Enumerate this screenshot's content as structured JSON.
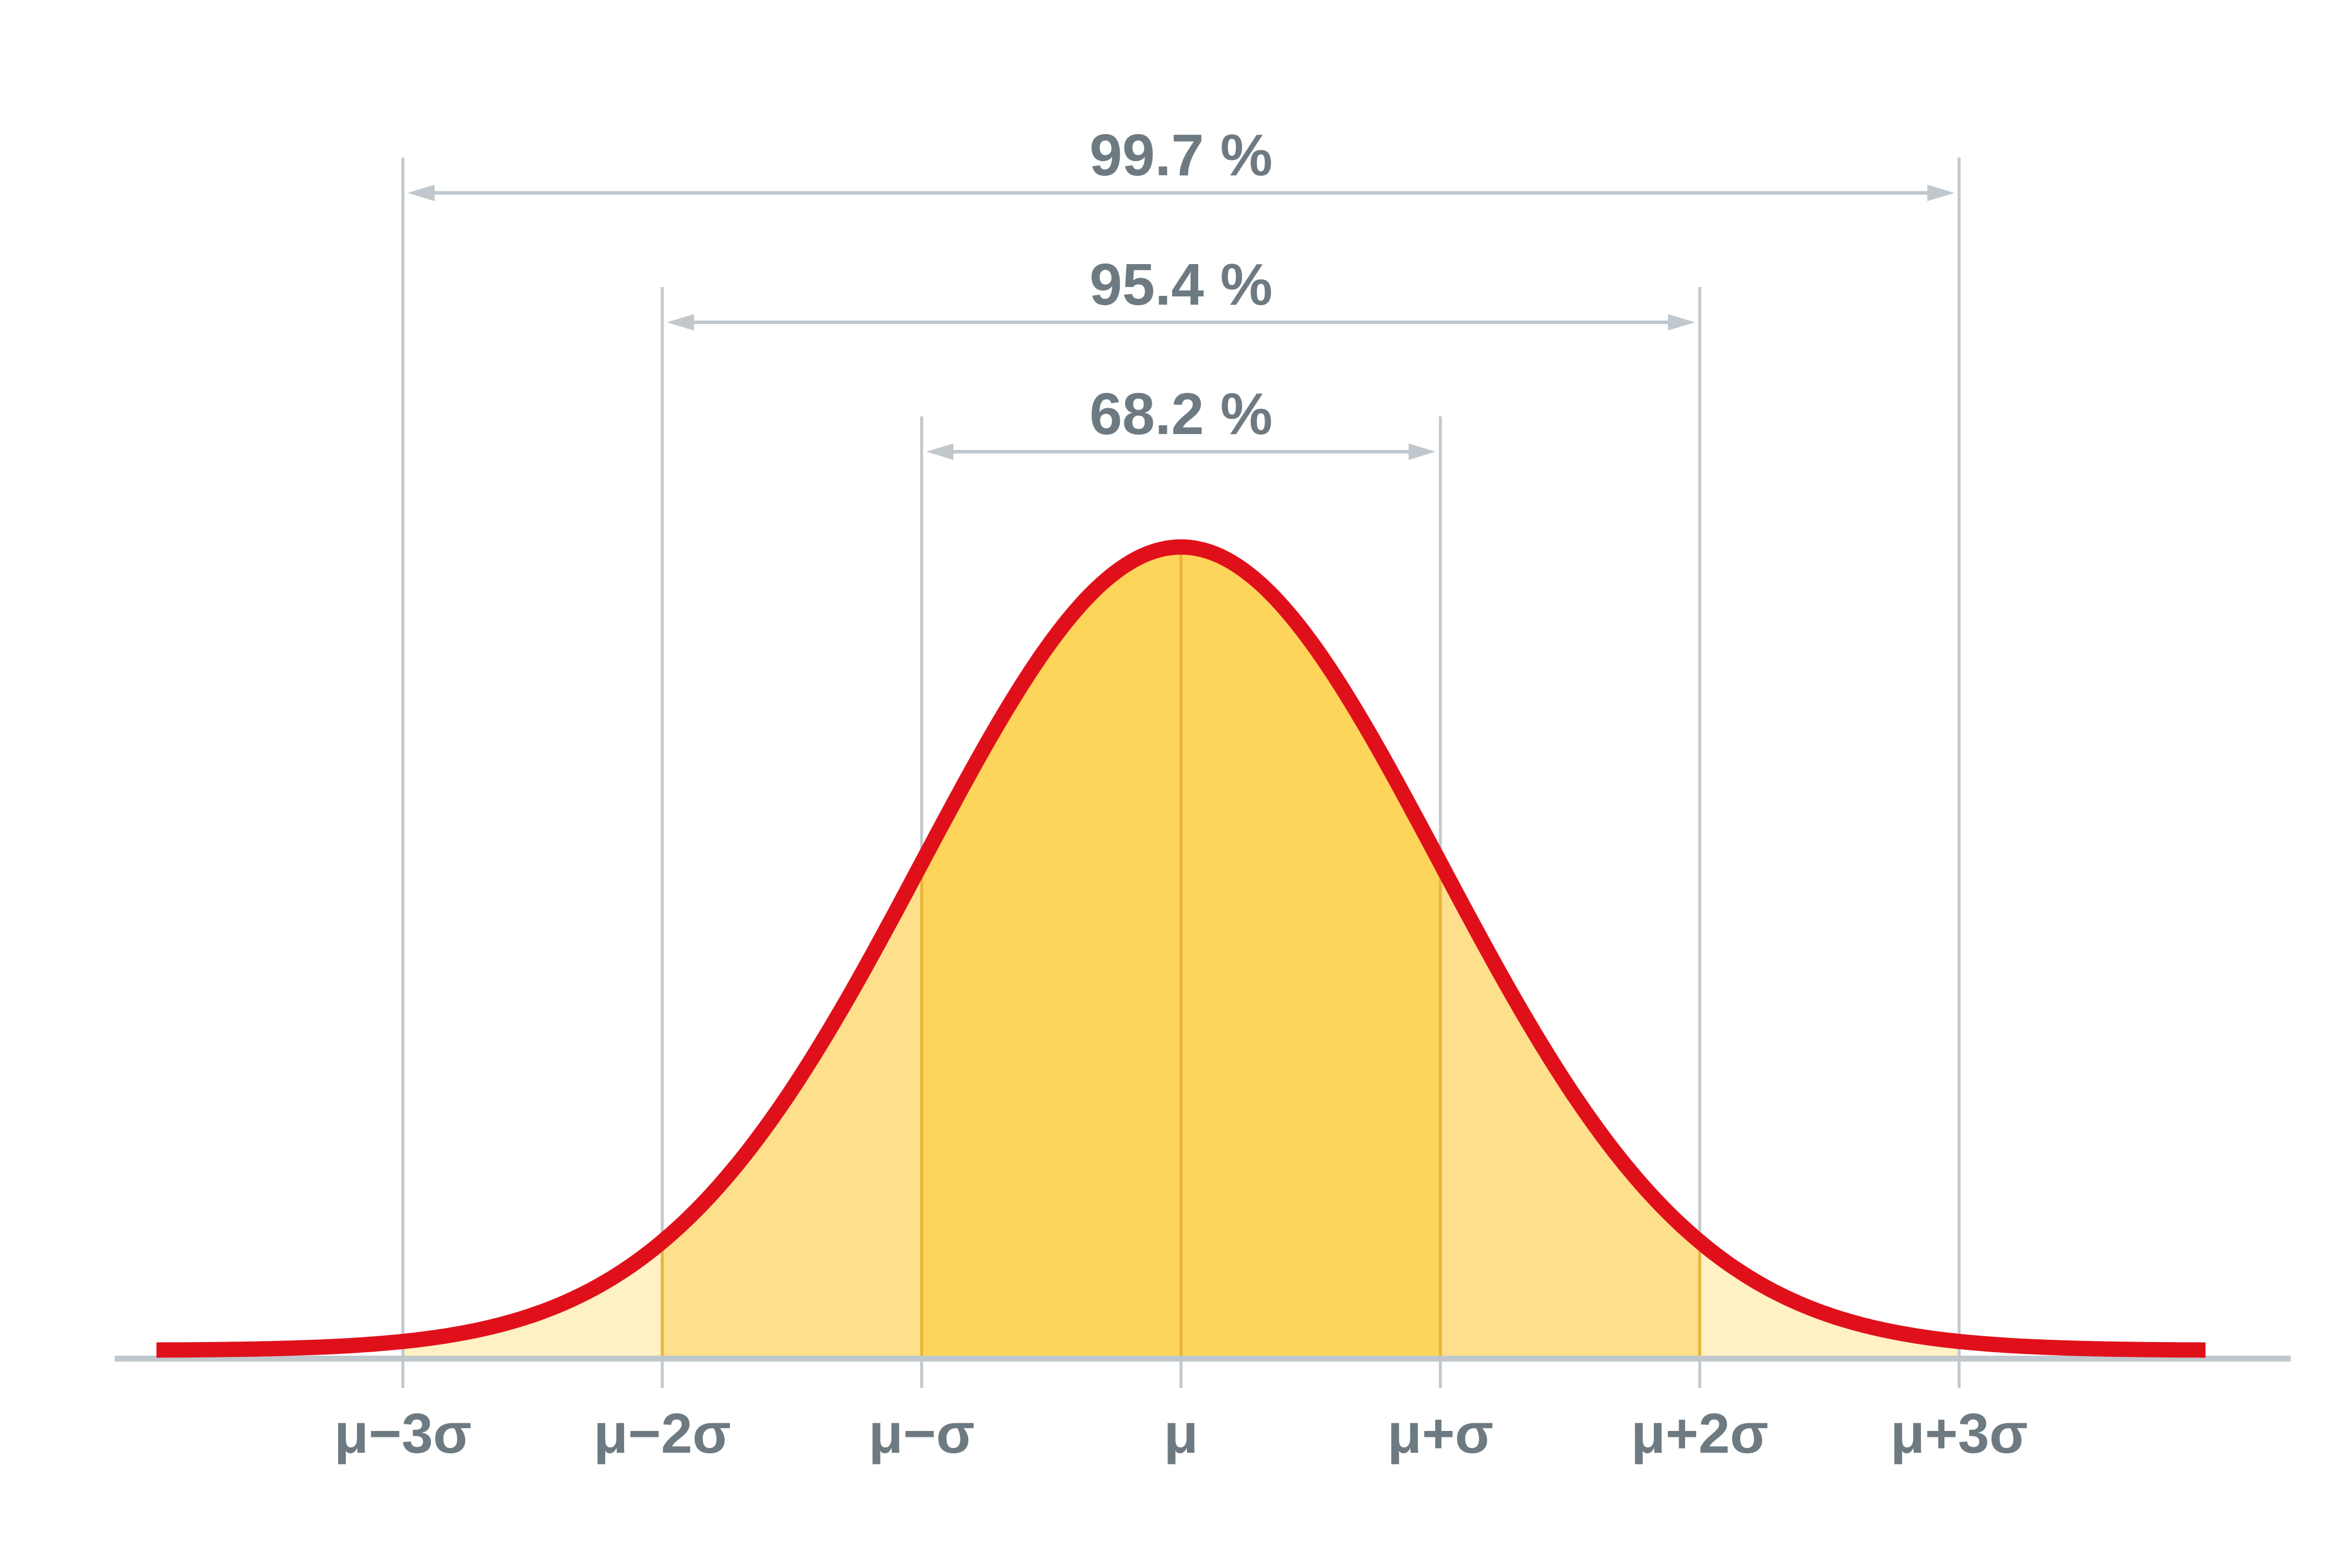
{
  "chart_data": {
    "type": "area",
    "distribution": "normal",
    "mean": 0,
    "sd": 1,
    "xlim": [
      -4.0,
      4.0
    ],
    "categories": [
      -3,
      -2,
      -1,
      0,
      1,
      2,
      3
    ],
    "tick_labels": [
      "μ−3σ",
      "μ−2σ",
      "μ−σ",
      "μ",
      "μ+σ",
      "μ+2σ",
      "μ+3σ"
    ],
    "ranges": [
      {
        "from": -3,
        "to": 3,
        "label": "99.7 %",
        "value": 99.7
      },
      {
        "from": -2,
        "to": 2,
        "label": "95.4 %",
        "value": 95.4
      },
      {
        "from": -1,
        "to": 1,
        "label": "68.2 %",
        "value": 68.2
      }
    ],
    "band_colors": {
      "within_1sd": "#fdd55a",
      "within_2sd": "#fee08c",
      "within_3sd": "#fff1c4"
    },
    "curve_color": "#e0101b",
    "guide_color": "#c0c8cd",
    "axis_color": "#c0c8cd",
    "label_color": "#6e7a82",
    "grid": false,
    "legend": "none"
  }
}
